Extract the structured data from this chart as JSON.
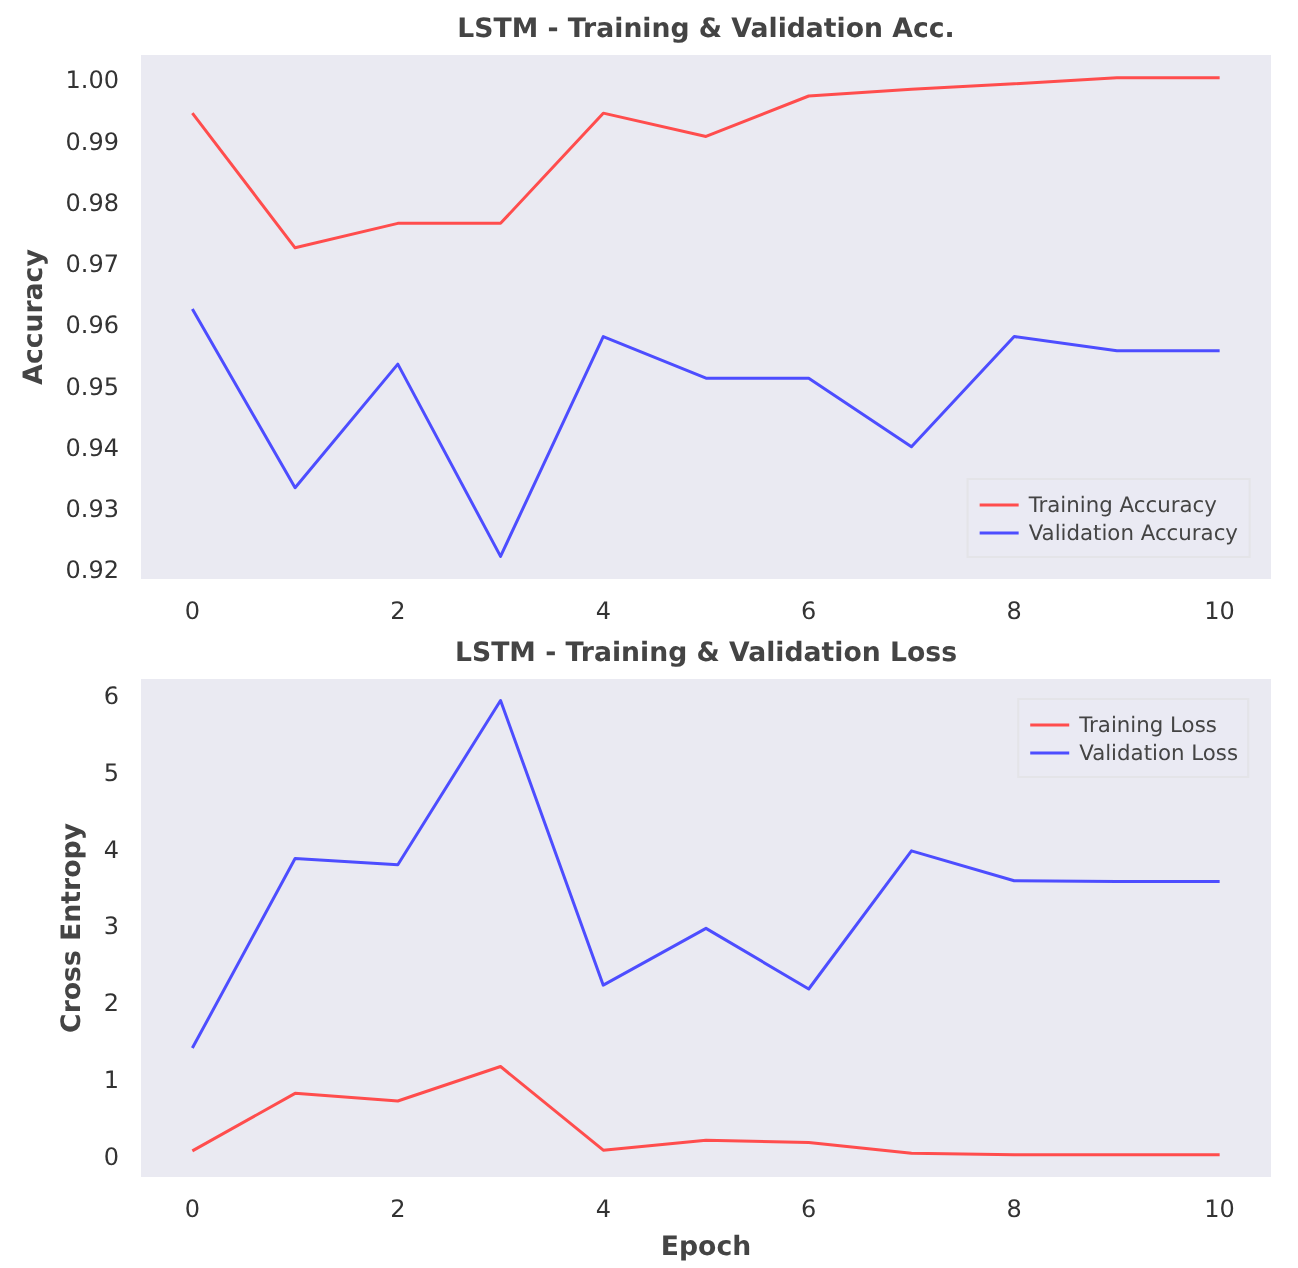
{
  "chart_data": [
    {
      "type": "line",
      "title": "LSTM - Training & Validation Acc.",
      "ylabel": "Accuracy",
      "x": [
        0,
        1,
        2,
        3,
        4,
        5,
        6,
        7,
        8,
        9,
        10
      ],
      "xlim": [
        -0.5,
        10.5
      ],
      "xticks": [
        0,
        2,
        4,
        6,
        8,
        10
      ],
      "ylim": [
        0.9184,
        1.004
      ],
      "yticks": [
        {
          "value": 0.92,
          "label": "0.92"
        },
        {
          "value": 0.93,
          "label": "0.93"
        },
        {
          "value": 0.94,
          "label": "0.94"
        },
        {
          "value": 0.95,
          "label": "0.95"
        },
        {
          "value": 0.96,
          "label": "0.96"
        },
        {
          "value": 0.97,
          "label": "0.97"
        },
        {
          "value": 0.98,
          "label": "0.98"
        },
        {
          "value": 0.99,
          "label": "0.99"
        },
        {
          "value": 1.0,
          "label": "1.00"
        }
      ],
      "grid": false,
      "legend": "bottom right",
      "series": [
        {
          "name": "Training Accuracy",
          "color": "#ff4d4d",
          "values": [
            0.9945,
            0.9725,
            0.9765,
            0.9765,
            0.9945,
            0.9907,
            0.9973,
            0.9984,
            0.9993,
            1.0003,
            1.0003
          ]
        },
        {
          "name": "Validation Accuracy",
          "color": "#4d4dff",
          "values": [
            0.9625,
            0.9333,
            0.9535,
            0.9221,
            0.958,
            0.9512,
            0.9512,
            0.94,
            0.958,
            0.9557,
            0.9557
          ]
        }
      ]
    },
    {
      "type": "line",
      "title": "LSTM - Training & Validation Loss",
      "xlabel": "Epoch",
      "ylabel": "Cross Entropy",
      "x": [
        0,
        1,
        2,
        3,
        4,
        5,
        6,
        7,
        8,
        9,
        10
      ],
      "xlim": [
        -0.5,
        10.5
      ],
      "xticks": [
        0,
        2,
        4,
        6,
        8,
        10
      ],
      "ylim": [
        -0.28,
        6.21
      ],
      "yticks": [
        0,
        1,
        2,
        3,
        4,
        5,
        6
      ],
      "grid": false,
      "legend": "top right",
      "series": [
        {
          "name": "Training Loss",
          "color": "#ff4d4d",
          "values": [
            0.06,
            0.81,
            0.71,
            1.16,
            0.07,
            0.2,
            0.17,
            0.03,
            0.01,
            0.01,
            0.01
          ]
        },
        {
          "name": "Validation Loss",
          "color": "#4d4dff",
          "values": [
            1.4,
            3.87,
            3.79,
            5.93,
            2.22,
            2.96,
            2.17,
            3.97,
            3.58,
            3.57,
            3.57
          ]
        }
      ]
    }
  ]
}
